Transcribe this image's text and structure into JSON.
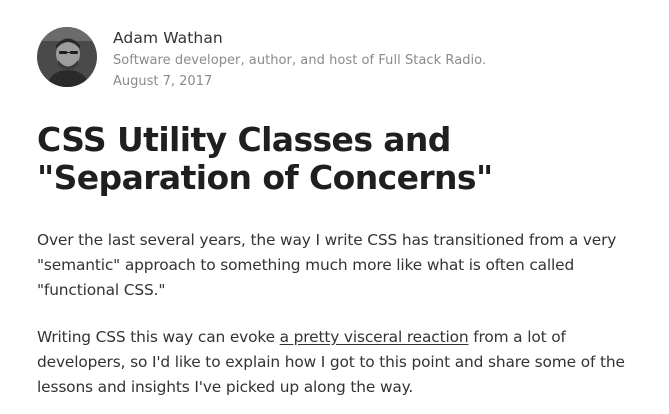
{
  "author": {
    "name": "Adam Wathan",
    "bio": "Software developer, author, and host of Full Stack Radio.",
    "date": "August 7, 2017",
    "avatar_icon": "author-portrait"
  },
  "article": {
    "title": "CSS Utility Classes and \"Separation of Concerns\"",
    "paragraph_1": "Over the last several years, the way I write CSS has transitioned from a very \"semantic\" approach to something much more like what is often called \"functional CSS.\"",
    "paragraph_2": {
      "before": "Writing CSS this way can evoke ",
      "link_text": "a pretty visceral reaction",
      "after": " from a lot of developers, so I'd like to explain how I got to this point and share some of the lessons and insights I've picked up along the way."
    }
  },
  "colors": {
    "text": "#333333",
    "muted": "#8a8a8a",
    "title": "#1f1f1f"
  }
}
